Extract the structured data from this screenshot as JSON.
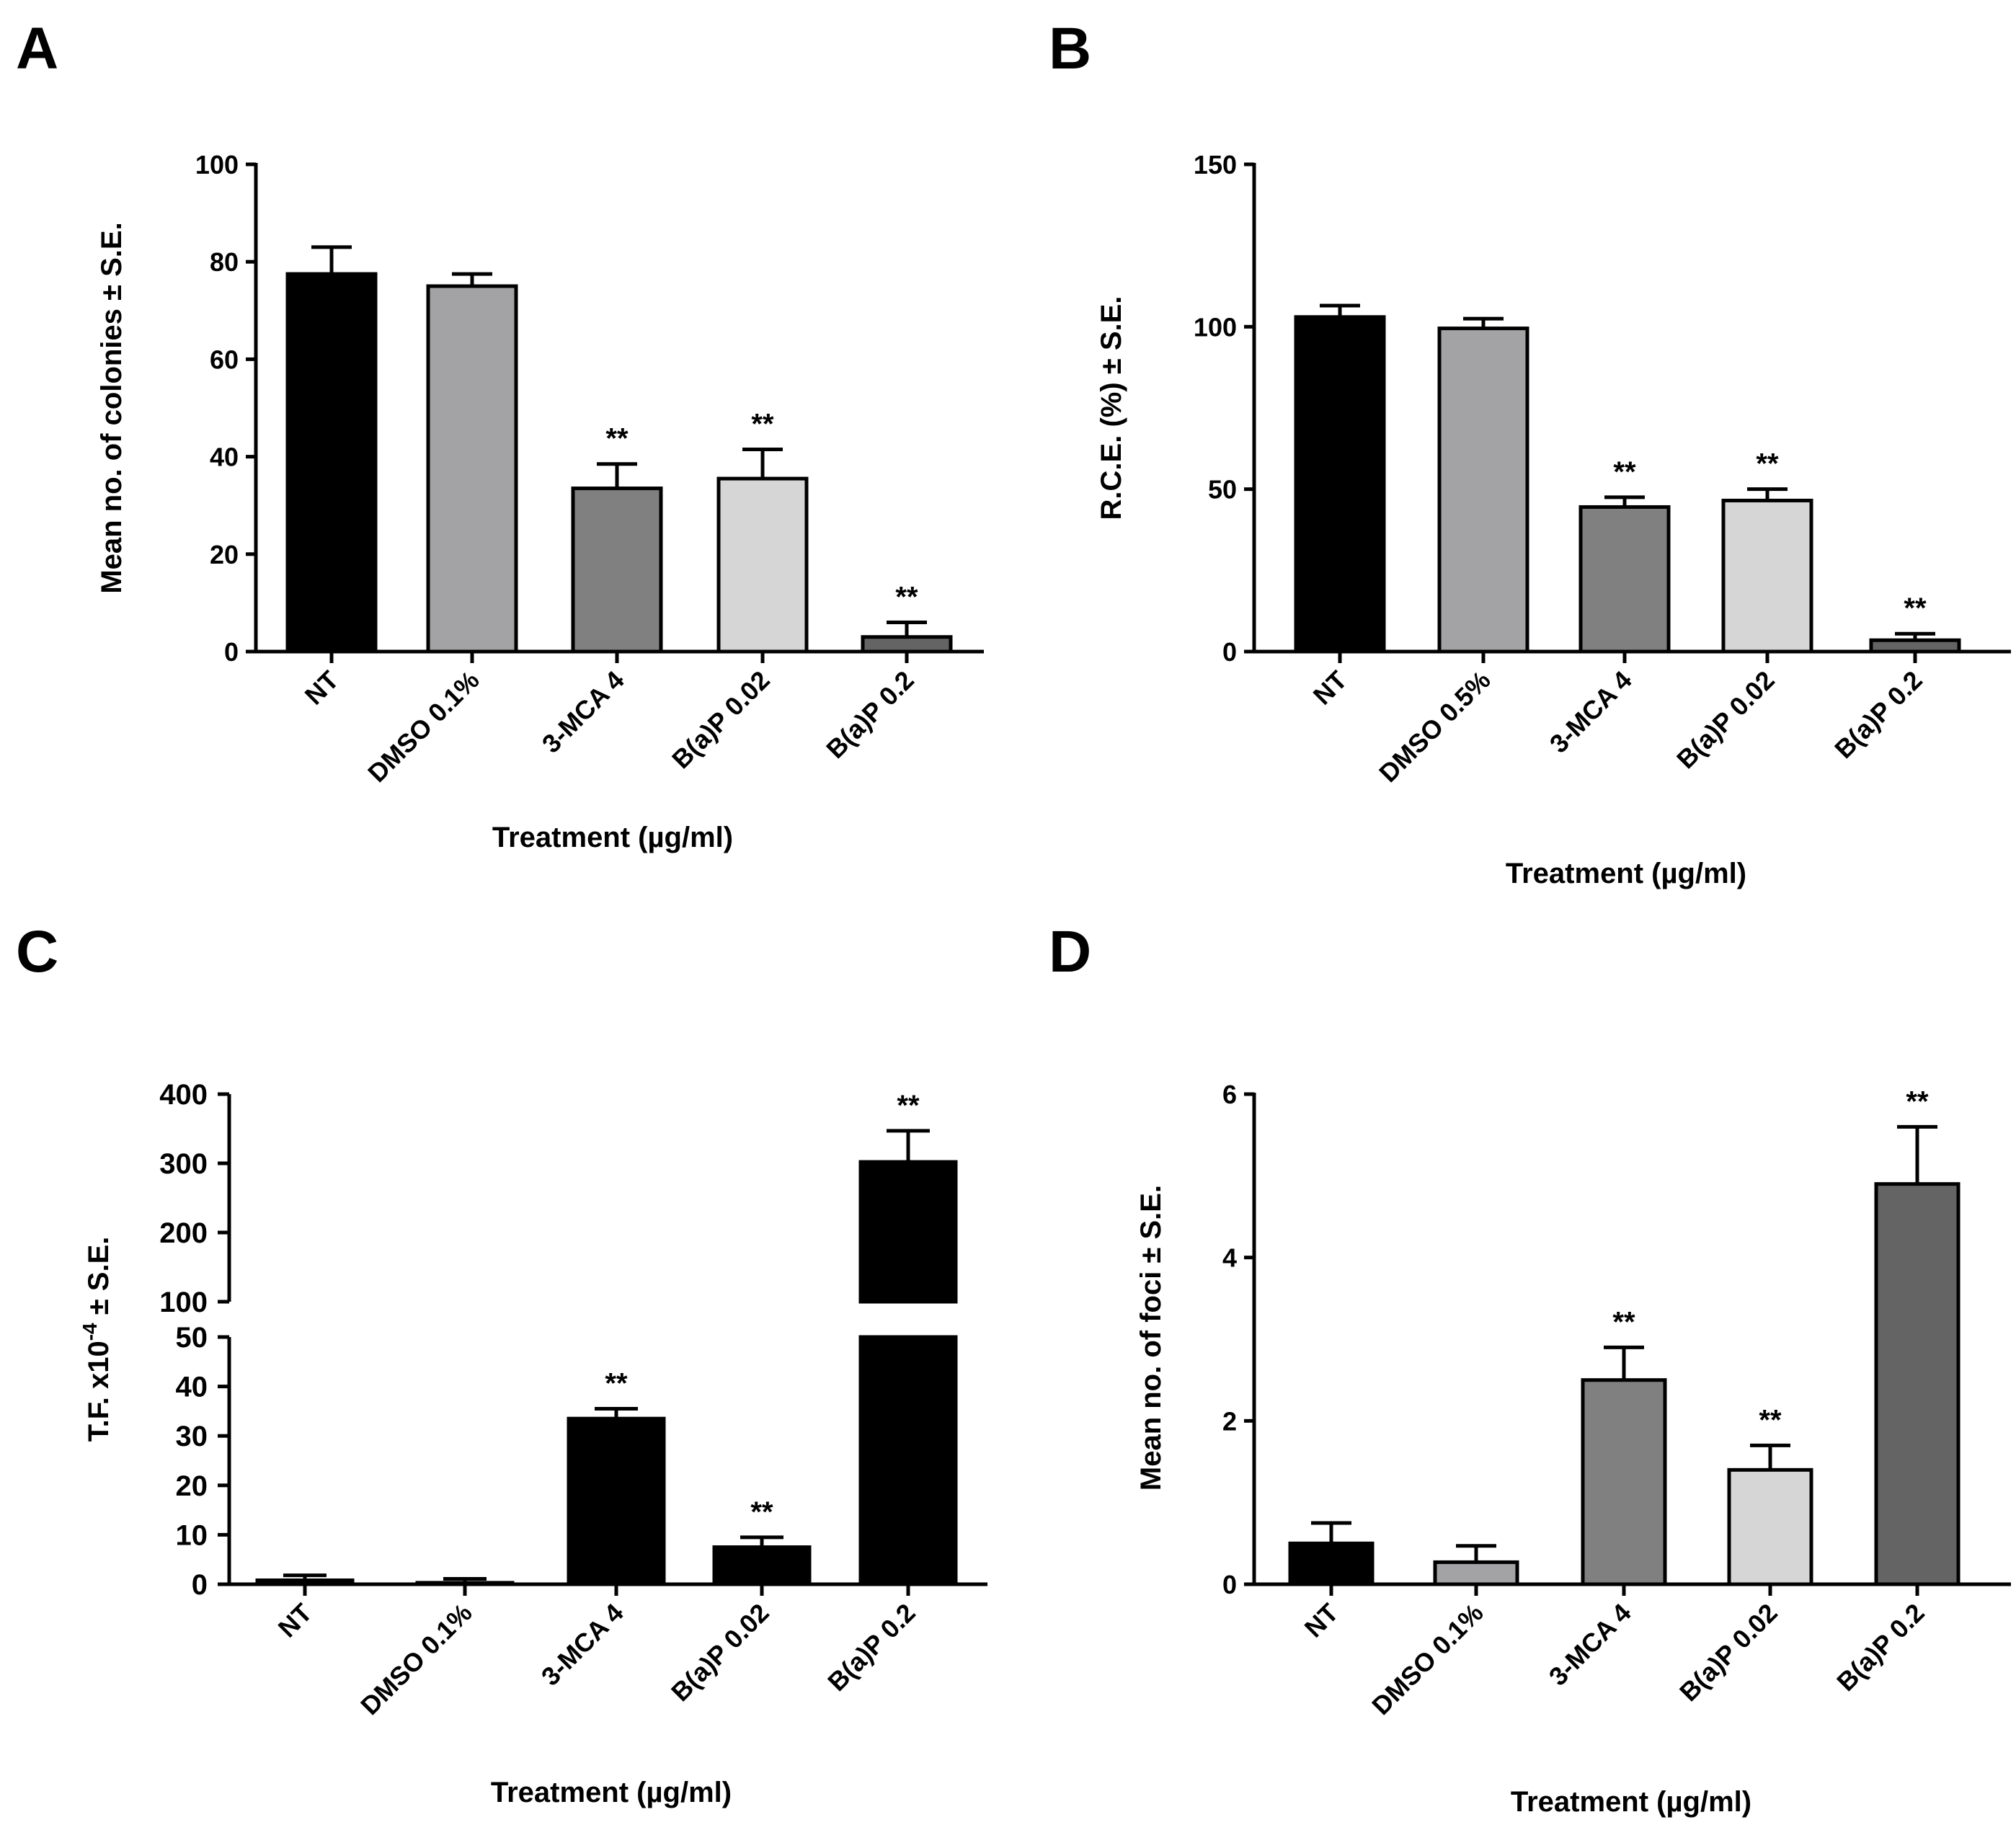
{
  "chart_data": [
    {
      "panel": "A",
      "type": "bar",
      "categories": [
        "NT",
        "DMSO 0.1%",
        "3-MCA 4",
        "B(a)P 0.02",
        "B(a)P 0.2"
      ],
      "values": [
        77.5,
        75,
        33.5,
        35.5,
        3
      ],
      "errors": [
        5.5,
        2.5,
        5,
        6,
        3
      ],
      "significance": [
        "",
        "",
        "**",
        "**",
        "**"
      ],
      "colors": [
        "#000000",
        "#a3a3a6",
        "#808080",
        "#d6d6d6",
        "#646464"
      ],
      "ylabel": "Mean no. of colonies ± S.E.",
      "xlabel": "Treatment  (µg/ml)",
      "ylim": [
        0,
        100
      ],
      "yticks": [
        0,
        20,
        40,
        60,
        80,
        100
      ]
    },
    {
      "panel": "B",
      "type": "bar",
      "categories": [
        "NT",
        "DMSO 0.5%",
        "3-MCA 4",
        "B(a)P 0.02",
        "B(a)P 0.2"
      ],
      "values": [
        103,
        99.5,
        44.5,
        46.5,
        3.5
      ],
      "errors": [
        3.5,
        3,
        3,
        3.5,
        2
      ],
      "significance": [
        "",
        "",
        "**",
        "**",
        "**"
      ],
      "colors": [
        "#000000",
        "#a3a3a6",
        "#808080",
        "#d6d6d6",
        "#646464"
      ],
      "ylabel": "R.C.E. (%) ± S.E.",
      "xlabel": "Treatment  (µg/ml)",
      "ylim": [
        0,
        150
      ],
      "yticks": [
        0,
        50,
        100,
        150
      ]
    },
    {
      "panel": "C",
      "type": "bar",
      "broken_axis": true,
      "categories": [
        "NT",
        "DMSO 0.1%",
        "3-MCA 4",
        "B(a)P 0.02",
        "B(a)P 0.2"
      ],
      "values": [
        0.8,
        0.3,
        33.5,
        7.5,
        302
      ],
      "errors": [
        1,
        0.8,
        2,
        2,
        45
      ],
      "significance": [
        "",
        "",
        "**",
        "**",
        "**"
      ],
      "colors": [
        "#000000",
        "#000000",
        "#000000",
        "#000000",
        "#000000"
      ],
      "ylabel_prefix": "T.F. x10",
      "ylabel_exp": "-4",
      "ylabel_suffix": " ± S.E.",
      "xlabel": "Treatment (µg/ml)",
      "ylim_lower": [
        0,
        50
      ],
      "ylim_upper": [
        100,
        400
      ],
      "yticks_lower": [
        0,
        10,
        20,
        30,
        40,
        50
      ],
      "yticks_upper": [
        100,
        200,
        300,
        400
      ]
    },
    {
      "panel": "D",
      "type": "bar",
      "categories": [
        "NT",
        "DMSO 0.1%",
        "3-MCA 4",
        "B(a)P 0.02",
        "B(a)P 0.2"
      ],
      "values": [
        0.5,
        0.27,
        2.5,
        1.4,
        4.9
      ],
      "errors": [
        0.25,
        0.2,
        0.4,
        0.3,
        0.7
      ],
      "significance": [
        "",
        "",
        "**",
        "**",
        "**"
      ],
      "colors": [
        "#000000",
        "#a3a3a6",
        "#808080",
        "#d6d6d6",
        "#646464"
      ],
      "ylabel": "Mean no. of foci ± S.E.",
      "xlabel": "Treatment  (µg/ml)",
      "ylim": [
        0,
        6
      ],
      "yticks": [
        0,
        2,
        4,
        6
      ]
    }
  ]
}
